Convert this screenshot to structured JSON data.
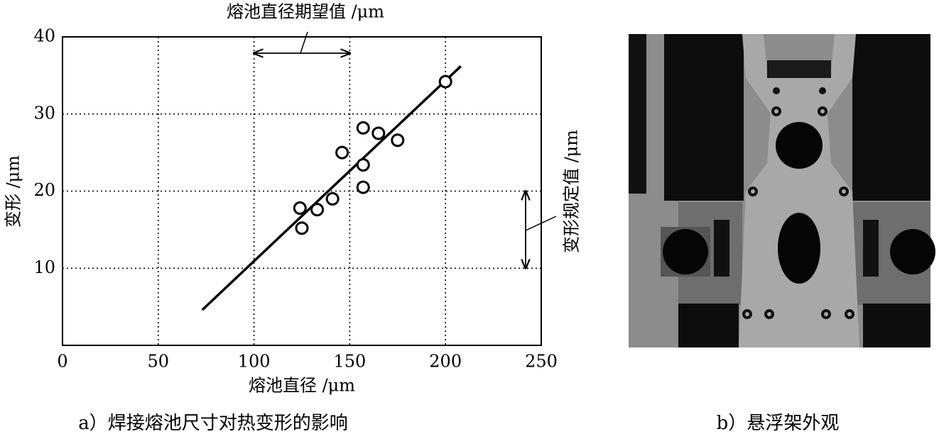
{
  "chart_data": {
    "type": "scatter",
    "caption": "a）焊接熔池尺寸对热变形的影响",
    "xlabel": "熔池直径 /μm",
    "ylabel": "变形 /μm",
    "x": [
      124,
      125,
      133,
      141,
      146,
      157,
      165,
      175,
      157,
      157,
      200
    ],
    "values": [
      17.8,
      15.2,
      17.6,
      19.0,
      25.0,
      28.2,
      27.5,
      26.6,
      23.4,
      20.5,
      34.2
    ],
    "color": "#000000",
    "fit_line": {
      "x": [
        73,
        208
      ],
      "y": [
        4.6,
        36.2
      ]
    },
    "xlim": [
      0,
      250
    ],
    "xticks": [
      0,
      50,
      100,
      150,
      200,
      250
    ],
    "ylim": [
      0,
      40
    ],
    "yticks": [
      10,
      20,
      30,
      40
    ],
    "grid": true,
    "annotations": [
      {
        "text": "熔池直径期望值 /μm",
        "x_range": [
          100,
          150
        ]
      },
      {
        "text": "变形规定值 /μm",
        "y_range": [
          10,
          20
        ]
      }
    ]
  },
  "photo_caption": "b）悬浮架外观"
}
